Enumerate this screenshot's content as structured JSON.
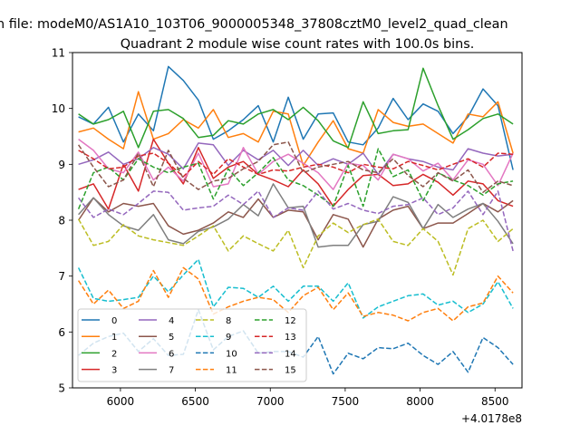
{
  "figure": {
    "suptitle": "n file: modeM0/AS1A10_103T06_9000005348_37808cztM0_level2_quad_clean",
    "title": "Quadrant 2 module wise count rates with 100.0s bins.",
    "x_offset_label": "+4.0178e8"
  },
  "chart_data": {
    "type": "line",
    "title": "Quadrant 2 module wise count rates with 100.0s bins.",
    "xlabel": "",
    "ylabel": "",
    "x_offset": 401780000,
    "xlim": [
      5680,
      8680
    ],
    "ylim": [
      5.0,
      11.0
    ],
    "xticks": [
      6000,
      6500,
      7000,
      7500,
      8000,
      8500
    ],
    "yticks": [
      5,
      6,
      7,
      8,
      9,
      10,
      11
    ],
    "grid": false,
    "legend": {
      "placement": "lower-left",
      "columns": 4
    },
    "x": [
      5720,
      5820,
      5920,
      6020,
      6120,
      6220,
      6320,
      6420,
      6520,
      6620,
      6720,
      6820,
      6920,
      7020,
      7120,
      7220,
      7320,
      7420,
      7520,
      7620,
      7720,
      7820,
      7920,
      8020,
      8120,
      8220,
      8320,
      8420,
      8520,
      8620
    ],
    "series": [
      {
        "name": "0",
        "color": "#1f77b4",
        "dash": "solid",
        "values": [
          9.85,
          9.72,
          10.02,
          9.4,
          9.9,
          9.6,
          10.75,
          10.5,
          10.15,
          9.45,
          9.6,
          9.8,
          10.05,
          9.4,
          10.2,
          9.45,
          9.9,
          9.92,
          9.4,
          9.35,
          9.65,
          10.18,
          9.8,
          10.08,
          9.95,
          9.55,
          9.85,
          10.35,
          10.05,
          8.9
        ]
      },
      {
        "name": "1",
        "color": "#ff7f0e",
        "dash": "solid",
        "values": [
          9.58,
          9.65,
          9.45,
          9.28,
          10.3,
          9.45,
          9.55,
          9.8,
          9.65,
          9.98,
          9.48,
          9.55,
          9.4,
          9.95,
          9.9,
          8.98,
          9.4,
          9.78,
          9.28,
          9.2,
          9.98,
          9.75,
          9.68,
          9.72,
          9.55,
          9.38,
          9.9,
          9.85,
          10.12,
          9.2
        ]
      },
      {
        "name": "2",
        "color": "#2ca02c",
        "dash": "solid",
        "values": [
          9.9,
          9.72,
          9.8,
          9.95,
          9.3,
          9.95,
          9.98,
          9.82,
          9.48,
          9.52,
          9.78,
          9.72,
          9.9,
          9.98,
          9.8,
          10.02,
          9.78,
          9.42,
          9.3,
          10.12,
          9.55,
          9.6,
          9.62,
          10.72,
          10.05,
          9.45,
          9.62,
          9.82,
          9.9,
          9.72
        ]
      },
      {
        "name": "3",
        "color": "#d62728",
        "dash": "solid",
        "values": [
          8.55,
          8.65,
          8.2,
          9.0,
          8.52,
          9.45,
          9.02,
          8.65,
          9.3,
          8.75,
          8.95,
          9.05,
          8.82,
          8.72,
          8.6,
          8.9,
          8.65,
          8.25,
          8.55,
          8.8,
          8.82,
          8.62,
          8.65,
          8.82,
          8.68,
          8.45,
          8.7,
          8.65,
          8.35,
          8.25
        ]
      },
      {
        "name": "4",
        "color": "#9467bd",
        "dash": "solid",
        "values": [
          9.0,
          9.08,
          9.22,
          9.0,
          9.1,
          9.3,
          9.18,
          8.92,
          9.38,
          9.35,
          8.98,
          9.25,
          9.08,
          9.25,
          8.98,
          9.25,
          8.98,
          9.1,
          9.0,
          9.2,
          8.82,
          9.18,
          9.1,
          9.05,
          8.95,
          8.9,
          9.28,
          9.2,
          9.15,
          9.18
        ]
      },
      {
        "name": "5",
        "color": "#8c564b",
        "dash": "solid",
        "values": [
          8.0,
          8.4,
          8.15,
          8.3,
          8.25,
          8.3,
          7.9,
          7.75,
          7.82,
          7.95,
          8.15,
          8.05,
          8.38,
          8.05,
          8.18,
          8.15,
          7.65,
          8.1,
          8.02,
          7.52,
          8.02,
          8.18,
          8.25,
          7.85,
          7.95,
          7.95,
          8.12,
          8.3,
          8.15,
          8.35
        ]
      },
      {
        "name": "6",
        "color": "#e377c2",
        "dash": "solid",
        "values": [
          9.45,
          9.25,
          8.92,
          8.85,
          9.22,
          8.72,
          8.95,
          8.7,
          9.2,
          8.6,
          8.65,
          9.3,
          8.82,
          9.05,
          9.18,
          9.02,
          8.85,
          8.55,
          9.02,
          8.98,
          8.72,
          9.18,
          9.1,
          8.88,
          9.02,
          8.72,
          9.08,
          9.0,
          8.62,
          9.2
        ]
      },
      {
        "name": "7",
        "color": "#7f7f7f",
        "dash": "solid",
        "values": [
          8.1,
          8.4,
          8.1,
          7.9,
          7.82,
          8.1,
          7.65,
          7.58,
          7.8,
          7.88,
          8.02,
          8.28,
          8.08,
          8.65,
          8.22,
          8.25,
          7.52,
          7.55,
          7.55,
          7.92,
          7.98,
          8.42,
          8.32,
          7.85,
          8.28,
          8.05,
          8.2,
          8.3,
          7.98,
          7.58
        ]
      },
      {
        "name": "8",
        "color": "#bcbd22",
        "dash": "dashed",
        "values": [
          8.02,
          7.55,
          7.62,
          7.92,
          7.72,
          7.65,
          7.6,
          7.55,
          7.72,
          7.9,
          7.45,
          7.72,
          7.58,
          7.45,
          7.82,
          7.15,
          7.72,
          7.95,
          7.78,
          7.92,
          8.02,
          7.62,
          7.55,
          7.85,
          7.62,
          7.02,
          7.85,
          8.0,
          7.62,
          7.85
        ]
      },
      {
        "name": "9",
        "color": "#17becf",
        "dash": "dashed",
        "values": [
          7.15,
          6.6,
          6.55,
          6.58,
          6.62,
          7.0,
          6.72,
          7.02,
          7.3,
          6.45,
          6.8,
          6.78,
          6.62,
          6.82,
          6.55,
          6.82,
          6.82,
          6.55,
          6.88,
          6.25,
          6.45,
          6.55,
          6.65,
          6.68,
          6.48,
          6.55,
          6.35,
          6.5,
          6.9,
          6.42
        ]
      },
      {
        "name": "10",
        "color": "#1f77b4",
        "dash": "dashed",
        "values": [
          5.58,
          5.8,
          5.92,
          5.98,
          5.65,
          5.88,
          5.58,
          5.6,
          6.4,
          5.68,
          5.92,
          6.02,
          5.62,
          5.65,
          5.65,
          5.55,
          5.92,
          5.25,
          5.62,
          5.52,
          5.72,
          5.7,
          5.8,
          5.58,
          5.42,
          5.65,
          5.28,
          5.9,
          5.72,
          5.42
        ]
      },
      {
        "name": "11",
        "color": "#ff7f0e",
        "dash": "dashed",
        "values": [
          6.92,
          6.5,
          6.75,
          6.42,
          6.55,
          7.1,
          6.62,
          7.15,
          6.95,
          6.32,
          6.45,
          6.55,
          6.62,
          6.58,
          6.35,
          6.65,
          6.8,
          6.4,
          6.7,
          6.28,
          6.35,
          6.3,
          6.2,
          6.35,
          6.42,
          6.2,
          6.45,
          6.52,
          7.0,
          6.7
        ]
      },
      {
        "name": "12",
        "color": "#2ca02c",
        "dash": "dashed",
        "values": [
          8.2,
          8.85,
          8.95,
          8.72,
          9.1,
          8.95,
          8.85,
          8.95,
          9.02,
          8.38,
          8.92,
          8.62,
          8.85,
          9.12,
          8.72,
          8.62,
          8.45,
          8.25,
          8.98,
          8.25,
          9.28,
          8.78,
          8.9,
          8.35,
          8.85,
          8.72,
          8.62,
          8.45,
          8.65,
          8.7
        ]
      },
      {
        "name": "13",
        "color": "#d62728",
        "dash": "dashed",
        "values": [
          9.25,
          9.1,
          8.92,
          8.95,
          9.15,
          9.2,
          9.02,
          8.78,
          9.05,
          8.82,
          9.1,
          8.95,
          8.82,
          8.9,
          8.88,
          8.95,
          9.0,
          8.95,
          8.85,
          9.0,
          8.95,
          8.92,
          9.05,
          8.98,
          8.9,
          9.0,
          9.1,
          8.95,
          9.2,
          9.18
        ]
      },
      {
        "name": "14",
        "color": "#9467bd",
        "dash": "dashed",
        "values": [
          8.4,
          8.05,
          8.2,
          8.1,
          8.3,
          8.52,
          8.5,
          8.18,
          8.22,
          8.25,
          8.45,
          8.28,
          8.52,
          8.05,
          8.22,
          8.18,
          8.52,
          8.2,
          8.3,
          8.18,
          8.12,
          8.25,
          8.28,
          8.4,
          8.1,
          8.22,
          8.52,
          8.1,
          8.52,
          7.45
        ]
      },
      {
        "name": "15",
        "color": "#8c564b",
        "dash": "dashed",
        "values": [
          9.35,
          8.95,
          8.6,
          8.72,
          9.2,
          8.6,
          9.25,
          8.75,
          8.55,
          8.7,
          8.75,
          8.92,
          9.05,
          9.35,
          9.4,
          8.85,
          8.95,
          9.0,
          9.05,
          8.9,
          8.85,
          9.1,
          8.8,
          8.6,
          8.85,
          8.7,
          8.9,
          8.5,
          8.7,
          8.62
        ]
      }
    ]
  }
}
